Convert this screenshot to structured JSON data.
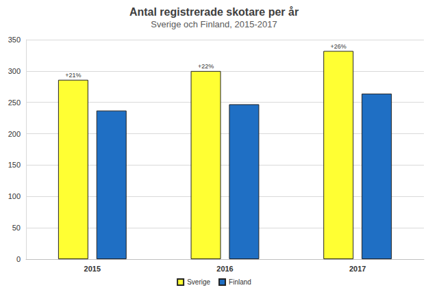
{
  "chart_data": {
    "type": "bar",
    "title": "Antal registrerade skotare per år",
    "subtitle": "Sverige och Finland, 2015-2017",
    "categories": [
      "2015",
      "2016",
      "2017"
    ],
    "series": [
      {
        "name": "Sverige",
        "color": "#ffff33",
        "values": [
          286,
          300,
          332
        ],
        "annotations": [
          "+21%",
          "+22%",
          "+26%"
        ]
      },
      {
        "name": "Finland",
        "color": "#1f6fc4",
        "values": [
          237,
          247,
          264
        ]
      }
    ],
    "ylim": [
      0,
      350
    ],
    "yticks": [
      0,
      50,
      100,
      150,
      200,
      250,
      300,
      350
    ],
    "grid": true,
    "legend": "bottom"
  }
}
